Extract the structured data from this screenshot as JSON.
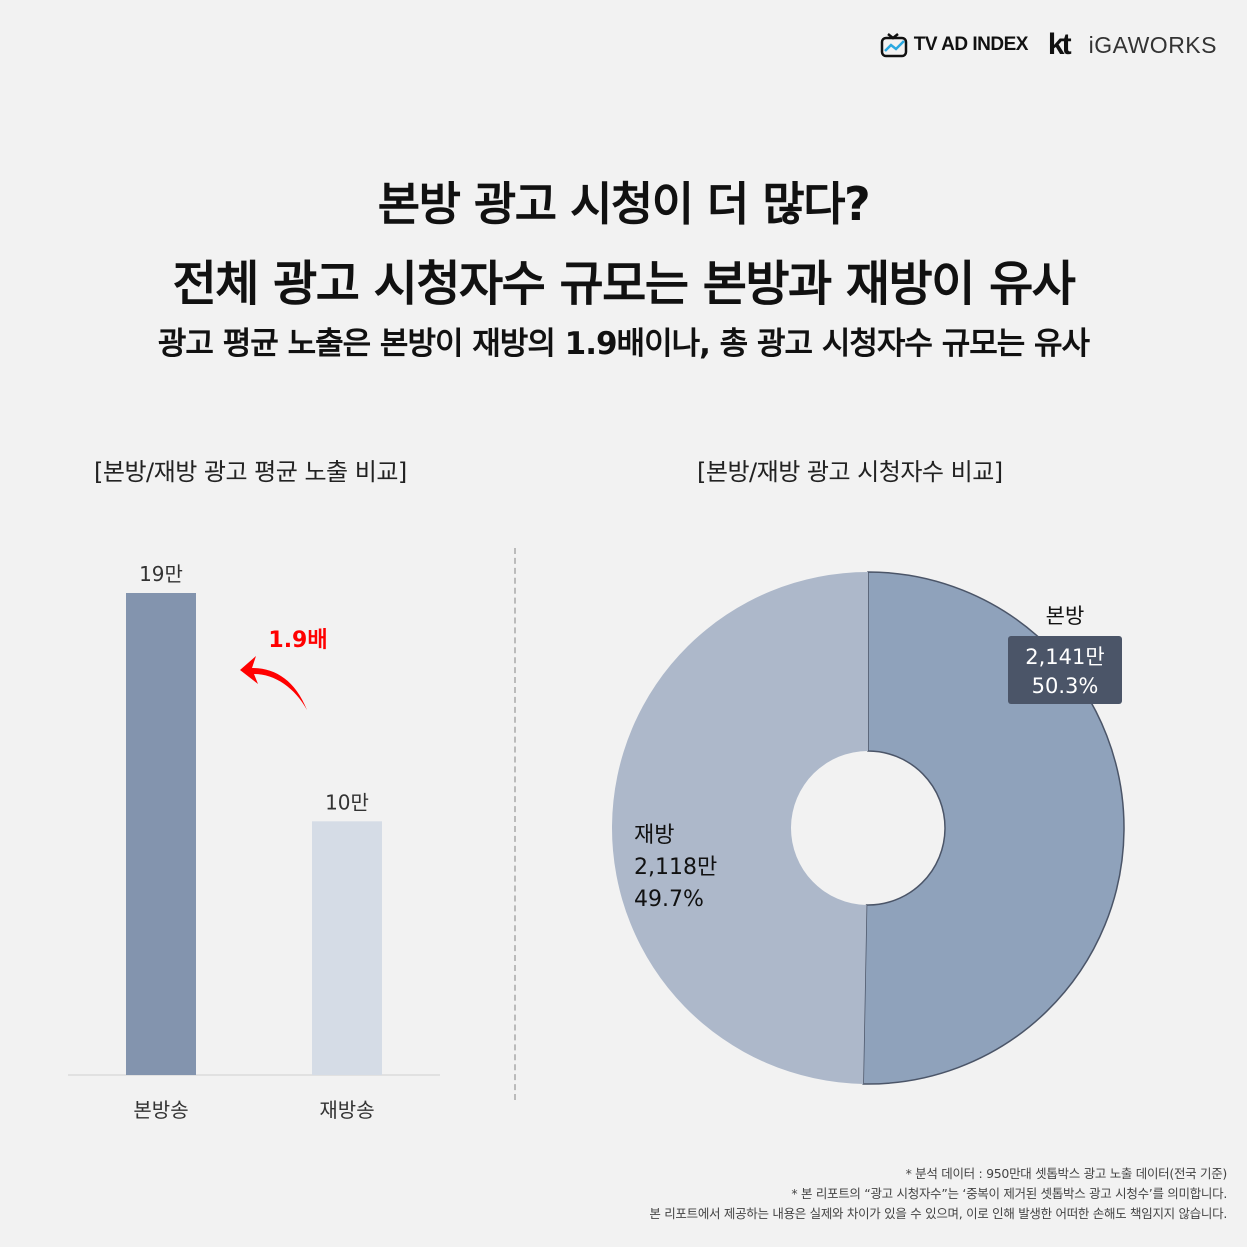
{
  "logos": {
    "tvad": "TV AD INDEX",
    "kt": "kt",
    "igaworks": "iGAWORKS"
  },
  "title": {
    "line1": "본방 광고 시청이 더 많다?",
    "line2": "전체 광고 시청자수 규모는 본방과 재방이 유사",
    "subtitle": "광고 평균 노출은 본방이 재방의 1.9배이나, 총 광고 시청자수 규모는 유사"
  },
  "colors": {
    "bonbang_bar": "#8394ae",
    "jaebang_bar": "#d5dce6",
    "bonbang_slice": "#8fa2bb",
    "jaebang_slice": "#adb8ca",
    "label_box": "#4b5568",
    "arrow": "#ff0000"
  },
  "chart_data": [
    {
      "type": "bar",
      "title": "[본방/재방 광고 평균 노출 비교]",
      "categories": [
        "본방송",
        "재방송"
      ],
      "values": [
        19,
        10
      ],
      "value_labels": [
        "19만",
        "10만"
      ],
      "unit": "만",
      "ylim": [
        0,
        19
      ],
      "annotation": "1.9배"
    },
    {
      "type": "pie",
      "title": "[본방/재방 광고 시청자수 비교]",
      "donut": true,
      "slices": [
        {
          "name": "본방",
          "value_label": "2,141만",
          "value": 2141,
          "percent": 50.3,
          "percent_label": "50.3%"
        },
        {
          "name": "재방",
          "value_label": "2,118만",
          "value": 2118,
          "percent": 49.7,
          "percent_label": "49.7%"
        }
      ]
    }
  ],
  "footnotes": [
    "* 분석 데이터 : 950만대 셋톱박스 광고 노출 데이터(전국 기준)",
    "* 본 리포트의 “광고 시청자수”는 ‘중복이 제거된 셋톱박스 광고 시청수’를 의미합니다.",
    "본 리포트에서 제공하는 내용은 실제와 차이가 있을 수 있으며, 이로 인해 발생한 어떠한 손해도 책임지지 않습니다."
  ]
}
